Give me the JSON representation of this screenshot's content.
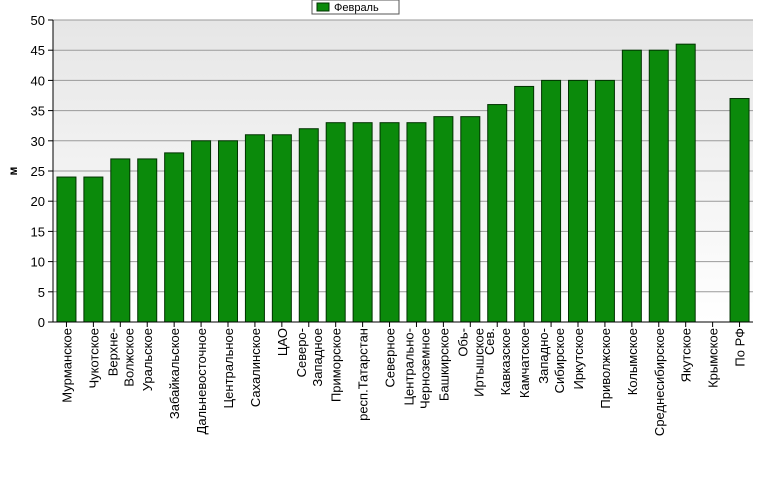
{
  "chart_data": {
    "type": "bar",
    "ylabel": "м",
    "ylim": [
      0,
      50
    ],
    "yticks": [
      0,
      5,
      10,
      15,
      20,
      25,
      30,
      35,
      40,
      45,
      50
    ],
    "grid": true,
    "legend_position": "top-center",
    "colors": {
      "bar": "#0b8a0b",
      "bar_stroke": "#003300",
      "plot_top": "#ececec",
      "plot_bottom": "#ffffff"
    },
    "categories": [
      [
        "Мурманское"
      ],
      [
        "Чукотское"
      ],
      [
        "Верхне-",
        "Волжское"
      ],
      [
        "Уральское"
      ],
      [
        "Забайкальское"
      ],
      [
        "Дальневосточное"
      ],
      [
        "Центральное"
      ],
      [
        "Сахалинское"
      ],
      [
        "ЦАО"
      ],
      [
        "Северо-",
        "Западное"
      ],
      [
        "Приморское"
      ],
      [
        "респ.Татарстан"
      ],
      [
        "Северное"
      ],
      [
        "Центрально-",
        "Черноземное"
      ],
      [
        "Башкирское"
      ],
      [
        "Обь-",
        "Иртышское"
      ],
      [
        "Сев.",
        "Кавказское"
      ],
      [
        "Камчатское"
      ],
      [
        "Западно-",
        "Сибирское"
      ],
      [
        "Иркутское"
      ],
      [
        "Приволжское"
      ],
      [
        "Колымское"
      ],
      [
        "Среднесибирское"
      ],
      [
        "Якутское"
      ],
      [
        "Крымское"
      ],
      [
        "По РФ"
      ]
    ],
    "series": [
      {
        "name": "Февраль",
        "values": [
          24,
          24,
          27,
          27,
          28,
          30,
          30,
          31,
          31,
          32,
          33,
          33,
          33,
          33,
          34,
          34,
          36,
          39,
          40,
          40,
          40,
          45,
          45,
          46,
          null,
          37
        ]
      }
    ]
  }
}
